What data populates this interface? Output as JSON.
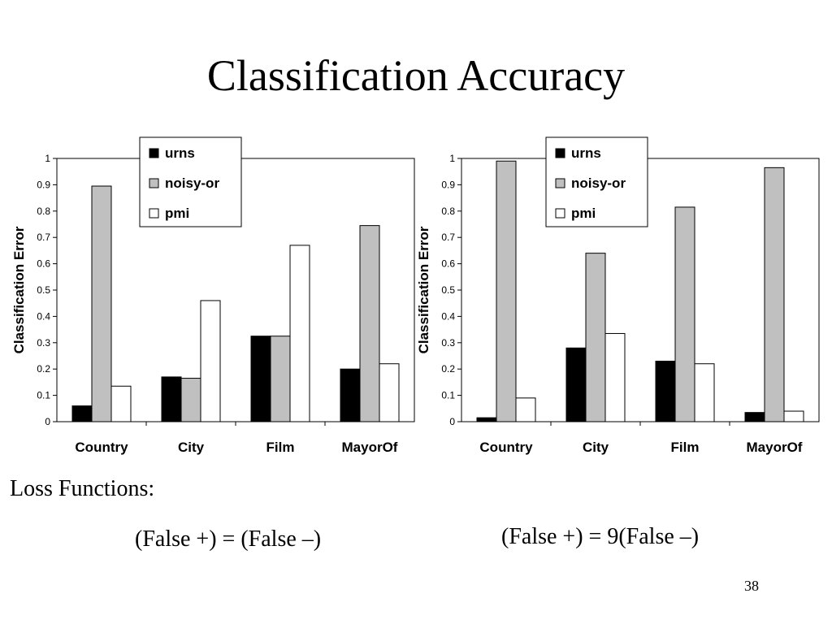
{
  "slide": {
    "title": "Classification Accuracy",
    "loss_heading": "Loss Functions:",
    "loss_left": "(False +) = (False –)",
    "loss_right": "(False +) = 9(False –)",
    "page_number": "38"
  },
  "colors": {
    "urns": "#000000",
    "noisy-or": "#c0c0c0",
    "pmi": "#ffffff",
    "border": "#000000"
  },
  "chart_data": [
    {
      "type": "bar",
      "categories": [
        "Country",
        "City",
        "Film",
        "MayorOf"
      ],
      "ylabel": "Classification Error",
      "ylim": [
        0,
        1
      ],
      "yticks": [
        "0",
        "0.1",
        "0.2",
        "0.3",
        "0.4",
        "0.5",
        "0.6",
        "0.7",
        "0.8",
        "0.9",
        "1"
      ],
      "legend_position": "top-right",
      "series": [
        {
          "name": "urns",
          "values": [
            0.06,
            0.17,
            0.325,
            0.2
          ]
        },
        {
          "name": "noisy-or",
          "values": [
            0.895,
            0.165,
            0.325,
            0.745
          ]
        },
        {
          "name": "pmi",
          "values": [
            0.135,
            0.46,
            0.67,
            0.22
          ]
        }
      ]
    },
    {
      "type": "bar",
      "categories": [
        "Country",
        "City",
        "Film",
        "MayorOf"
      ],
      "ylabel": "Classification Error",
      "ylim": [
        0,
        1
      ],
      "yticks": [
        "0",
        "0.1",
        "0.2",
        "0.3",
        "0.4",
        "0.5",
        "0.6",
        "0.7",
        "0.8",
        "0.9",
        "1"
      ],
      "legend_position": "top-right",
      "series": [
        {
          "name": "urns",
          "values": [
            0.015,
            0.28,
            0.23,
            0.035
          ]
        },
        {
          "name": "noisy-or",
          "values": [
            0.99,
            0.64,
            0.815,
            0.965
          ]
        },
        {
          "name": "pmi",
          "values": [
            0.09,
            0.335,
            0.22,
            0.04
          ]
        }
      ]
    }
  ]
}
